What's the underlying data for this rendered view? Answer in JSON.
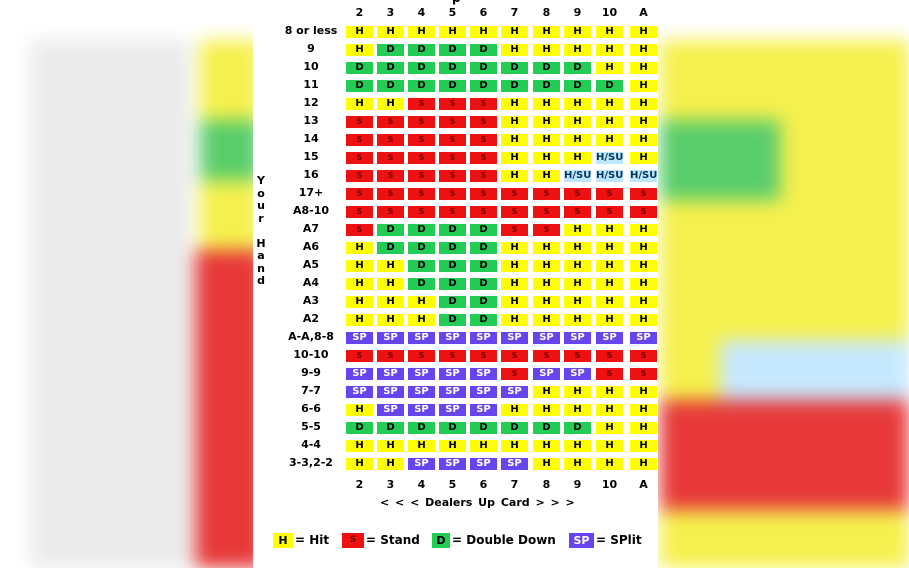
{
  "chart_title_partial": "p",
  "dealer_cards": [
    "2",
    "3",
    "4",
    "5",
    "6",
    "7",
    "8",
    "9",
    "10",
    "A"
  ],
  "axis_label": "< < < Dealers Up Card > > >",
  "side_label": [
    "Y",
    "o",
    "u",
    "r",
    "",
    "H",
    "a",
    "n",
    "d"
  ],
  "colors": {
    "H": "#ffff00",
    "S": "#ee1111",
    "D": "#22cc55",
    "SP": "#6644ee",
    "HSU": "#bfe6ff"
  },
  "rows": [
    {
      "label": "8 or less",
      "cells": [
        "H",
        "H",
        "H",
        "H",
        "H",
        "H",
        "H",
        "H",
        "H",
        "H"
      ]
    },
    {
      "label": "9",
      "cells": [
        "H",
        "D",
        "D",
        "D",
        "D",
        "H",
        "H",
        "H",
        "H",
        "H"
      ]
    },
    {
      "label": "10",
      "cells": [
        "D",
        "D",
        "D",
        "D",
        "D",
        "D",
        "D",
        "D",
        "H",
        "H"
      ]
    },
    {
      "label": "11",
      "cells": [
        "D",
        "D",
        "D",
        "D",
        "D",
        "D",
        "D",
        "D",
        "D",
        "H"
      ]
    },
    {
      "label": "12",
      "cells": [
        "H",
        "H",
        "S",
        "S",
        "S",
        "H",
        "H",
        "H",
        "H",
        "H"
      ]
    },
    {
      "label": "13",
      "cells": [
        "S",
        "S",
        "S",
        "S",
        "S",
        "H",
        "H",
        "H",
        "H",
        "H"
      ]
    },
    {
      "label": "14",
      "cells": [
        "S",
        "S",
        "S",
        "S",
        "S",
        "H",
        "H",
        "H",
        "H",
        "H"
      ]
    },
    {
      "label": "15",
      "cells": [
        "S",
        "S",
        "S",
        "S",
        "S",
        "H",
        "H",
        "H",
        "H/SU",
        "H"
      ]
    },
    {
      "label": "16",
      "cells": [
        "S",
        "S",
        "S",
        "S",
        "S",
        "H",
        "H",
        "H/SU",
        "H/SU",
        "H/SU"
      ]
    },
    {
      "label": "17+",
      "cells": [
        "S",
        "S",
        "S",
        "S",
        "S",
        "S",
        "S",
        "S",
        "S",
        "S"
      ]
    },
    {
      "label": "A8-10",
      "cells": [
        "S",
        "S",
        "S",
        "S",
        "S",
        "S",
        "S",
        "S",
        "S",
        "S"
      ]
    },
    {
      "label": "A7",
      "cells": [
        "S",
        "D",
        "D",
        "D",
        "D",
        "S",
        "S",
        "H",
        "H",
        "H"
      ]
    },
    {
      "label": "A6",
      "cells": [
        "H",
        "D",
        "D",
        "D",
        "D",
        "H",
        "H",
        "H",
        "H",
        "H"
      ]
    },
    {
      "label": "A5",
      "cells": [
        "H",
        "H",
        "D",
        "D",
        "D",
        "H",
        "H",
        "H",
        "H",
        "H"
      ]
    },
    {
      "label": "A4",
      "cells": [
        "H",
        "H",
        "D",
        "D",
        "D",
        "H",
        "H",
        "H",
        "H",
        "H"
      ]
    },
    {
      "label": "A3",
      "cells": [
        "H",
        "H",
        "H",
        "D",
        "D",
        "H",
        "H",
        "H",
        "H",
        "H"
      ]
    },
    {
      "label": "A2",
      "cells": [
        "H",
        "H",
        "H",
        "D",
        "D",
        "H",
        "H",
        "H",
        "H",
        "H"
      ]
    },
    {
      "label": "A-A,8-8",
      "cells": [
        "SP",
        "SP",
        "SP",
        "SP",
        "SP",
        "SP",
        "SP",
        "SP",
        "SP",
        "SP"
      ]
    },
    {
      "label": "10-10",
      "cells": [
        "S",
        "S",
        "S",
        "S",
        "S",
        "S",
        "S",
        "S",
        "S",
        "S"
      ]
    },
    {
      "label": "9-9",
      "cells": [
        "SP",
        "SP",
        "SP",
        "SP",
        "SP",
        "S",
        "SP",
        "SP",
        "S",
        "S"
      ]
    },
    {
      "label": "7-7",
      "cells": [
        "SP",
        "SP",
        "SP",
        "SP",
        "SP",
        "SP",
        "H",
        "H",
        "H",
        "H"
      ]
    },
    {
      "label": "6-6",
      "cells": [
        "H",
        "SP",
        "SP",
        "SP",
        "SP",
        "H",
        "H",
        "H",
        "H",
        "H"
      ]
    },
    {
      "label": "5-5",
      "cells": [
        "D",
        "D",
        "D",
        "D",
        "D",
        "D",
        "D",
        "D",
        "H",
        "H"
      ]
    },
    {
      "label": "4-4",
      "cells": [
        "H",
        "H",
        "H",
        "H",
        "H",
        "H",
        "H",
        "H",
        "H",
        "H"
      ]
    },
    {
      "label": "3-3,2-2",
      "cells": [
        "H",
        "H",
        "SP",
        "SP",
        "SP",
        "SP",
        "H",
        "H",
        "H",
        "H"
      ]
    }
  ],
  "legend": [
    {
      "code": "H",
      "swatch": "H",
      "text": "= Hit"
    },
    {
      "code": "S",
      "swatch": "S",
      "text": "= Stand"
    },
    {
      "code": "D",
      "swatch": "D",
      "text": "= Double Down"
    },
    {
      "code": "SP",
      "swatch": "SP",
      "text": "= SPlit"
    }
  ]
}
